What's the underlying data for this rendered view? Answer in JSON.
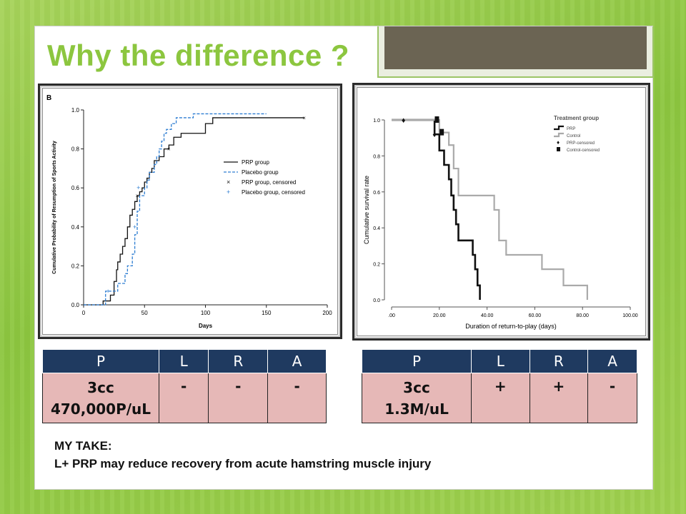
{
  "slide": {
    "title": "Why the difference ?",
    "take_heading": "MY TAKE:",
    "take_text": "L+ PRP may reduce recovery from acute hamstring muscle injury"
  },
  "tables": [
    {
      "headers": [
        "P",
        "L",
        "R",
        "A"
      ],
      "row": [
        "3cc 470,000P/uL",
        "-",
        "-",
        "-"
      ],
      "p_line1": "3cc",
      "p_line2": "470,000P/uL"
    },
    {
      "headers": [
        "P",
        "L",
        "R",
        "A"
      ],
      "row": [
        "3cc 1.3M/uL",
        "+",
        "+",
        "-"
      ],
      "p_line1": "3cc",
      "p_line2": "1.3M/uL"
    }
  ],
  "colors": {
    "title": "#8cc63f",
    "table_header": "#1f3a60",
    "table_cell": "#e6b8b7"
  },
  "chart_data": [
    {
      "type": "line",
      "panel_label": "B",
      "xlabel": "Days",
      "ylabel": "Cumulative Probability of Resumption of Sports Activity",
      "xlim": [
        0,
        200
      ],
      "ylim": [
        0,
        1.0
      ],
      "xticks": [
        0,
        50,
        100,
        150,
        200
      ],
      "yticks": [
        0.0,
        0.2,
        0.4,
        0.6,
        0.8,
        1.0
      ],
      "legend_position": "right",
      "legend": [
        "PRP group",
        "Placebo group",
        "PRP group, censored",
        "Placebo group, censored"
      ],
      "series": [
        {
          "name": "PRP group",
          "style": "solid",
          "color": "#111111",
          "x": [
            0,
            16,
            22,
            25,
            27,
            28,
            30,
            32,
            34,
            36,
            38,
            40,
            42,
            44,
            46,
            48,
            50,
            52,
            54,
            56,
            58,
            62,
            66,
            70,
            74,
            80,
            88,
            100,
            106,
            181
          ],
          "y": [
            0,
            0.02,
            0.05,
            0.12,
            0.18,
            0.22,
            0.26,
            0.3,
            0.34,
            0.4,
            0.46,
            0.49,
            0.53,
            0.56,
            0.58,
            0.6,
            0.63,
            0.65,
            0.68,
            0.7,
            0.74,
            0.76,
            0.8,
            0.82,
            0.86,
            0.88,
            0.88,
            0.93,
            0.96,
            0.96
          ]
        },
        {
          "name": "Placebo group",
          "style": "dashed",
          "color": "#2d7dd2",
          "x": [
            0,
            18,
            28,
            34,
            36,
            40,
            42,
            44,
            46,
            50,
            52,
            54,
            58,
            60,
            62,
            64,
            66,
            68,
            72,
            76,
            86,
            90,
            150
          ],
          "y": [
            0,
            0.07,
            0.11,
            0.16,
            0.2,
            0.26,
            0.36,
            0.48,
            0.56,
            0.6,
            0.64,
            0.68,
            0.72,
            0.76,
            0.8,
            0.84,
            0.88,
            0.9,
            0.93,
            0.96,
            0.96,
            0.98,
            0.98
          ]
        }
      ],
      "censored": {
        "PRP group, censored": {
          "x": [
            44,
            70,
            181
          ],
          "y": [
            0.56,
            0.8,
            0.96
          ]
        },
        "Placebo group, censored": {
          "x": [
            20,
            42,
            45
          ],
          "y": [
            0.07,
            0.4,
            0.6
          ]
        }
      }
    },
    {
      "type": "line",
      "xlabel": "Duration of return-to-play (days)",
      "ylabel": "Cumulative survival rate",
      "xlim": [
        0,
        100
      ],
      "ylim": [
        0,
        1.0
      ],
      "xticks": [
        ".00",
        "20.00",
        "40.00",
        "60.00",
        "80.00",
        "100.00"
      ],
      "yticks": [
        "0.0",
        "0.2",
        "0.4",
        "0.6",
        "0.8",
        "1.0"
      ],
      "legend_title": "Treatment group",
      "legend_position": "top-right",
      "legend": [
        "PRP",
        "Control",
        "PRP-censored",
        "Control-censored"
      ],
      "series": [
        {
          "name": "PRP",
          "color": "#111111",
          "x": [
            0,
            17,
            18,
            20,
            22,
            24,
            25,
            26,
            27,
            28,
            30,
            34,
            35,
            36,
            37
          ],
          "y": [
            1.0,
            1.0,
            0.92,
            0.83,
            0.75,
            0.67,
            0.58,
            0.5,
            0.42,
            0.33,
            0.33,
            0.25,
            0.17,
            0.08,
            0.0
          ]
        },
        {
          "name": "Control",
          "color": "#aaaaaa",
          "x": [
            0,
            19,
            20,
            24,
            26,
            28,
            40,
            43,
            45,
            48,
            63,
            72,
            82
          ],
          "y": [
            1.0,
            1.0,
            0.93,
            0.86,
            0.73,
            0.58,
            0.58,
            0.5,
            0.33,
            0.25,
            0.17,
            0.08,
            0.0
          ]
        }
      ],
      "censored": {
        "PRP-censored": {
          "x": [
            5,
            18
          ],
          "y": [
            1.0,
            0.92
          ]
        },
        "Control-censored": {
          "x": [
            19,
            21
          ],
          "y": [
            1.0,
            0.93
          ]
        }
      }
    }
  ]
}
